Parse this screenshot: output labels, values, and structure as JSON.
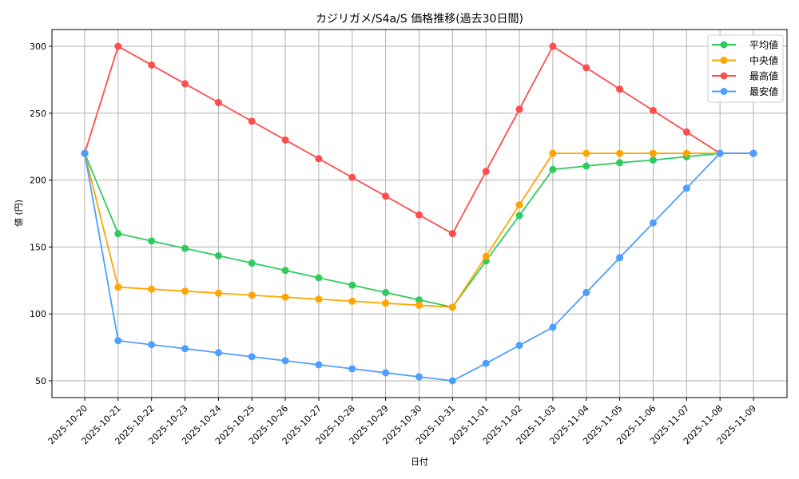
{
  "chart_data": {
    "type": "line",
    "title": "カジリガメ/S4a/S 価格推移(過去30日間)",
    "xlabel": "日付",
    "ylabel": "値 (円)",
    "ylim": [
      38,
      313
    ],
    "yticks": [
      50,
      100,
      150,
      200,
      250,
      300
    ],
    "grid": true,
    "legend_position": "upper right",
    "categories": [
      "2025-10-20",
      "2025-10-21",
      "2025-10-22",
      "2025-10-23",
      "2025-10-24",
      "2025-10-25",
      "2025-10-26",
      "2025-10-27",
      "2025-10-28",
      "2025-10-29",
      "2025-10-30",
      "2025-10-31",
      "2025-11-01",
      "2025-11-02",
      "2025-11-03",
      "2025-11-04",
      "2025-11-05",
      "2025-11-06",
      "2025-11-07",
      "2025-11-08",
      "2025-11-09"
    ],
    "series": [
      {
        "name": "平均値",
        "color": "#2ecc5f",
        "values": [
          220,
          160,
          154.5,
          149,
          143.5,
          138,
          132.5,
          127,
          121.5,
          116,
          110.5,
          105,
          139.5,
          173.5,
          208,
          210.5,
          213,
          215,
          217.5,
          220,
          220
        ]
      },
      {
        "name": "中央値",
        "color": "#ffa500",
        "values": [
          220,
          120,
          118.5,
          117,
          115.5,
          114,
          112.5,
          111,
          109.5,
          108,
          106.5,
          105,
          143,
          181.5,
          220,
          220,
          220,
          220,
          220,
          220,
          220
        ]
      },
      {
        "name": "最高値",
        "color": "#ff4d4d",
        "values": [
          220,
          300,
          286,
          272,
          258,
          244,
          230,
          216,
          202,
          188,
          174,
          160,
          206.5,
          253,
          300,
          284,
          268,
          252,
          236,
          220,
          220
        ]
      },
      {
        "name": "最安値",
        "color": "#4d9fff",
        "values": [
          220,
          80,
          77,
          74,
          71,
          68,
          65,
          62,
          59,
          56,
          53,
          50,
          63,
          76.5,
          90,
          116,
          142,
          168,
          194,
          220,
          220
        ]
      }
    ]
  }
}
